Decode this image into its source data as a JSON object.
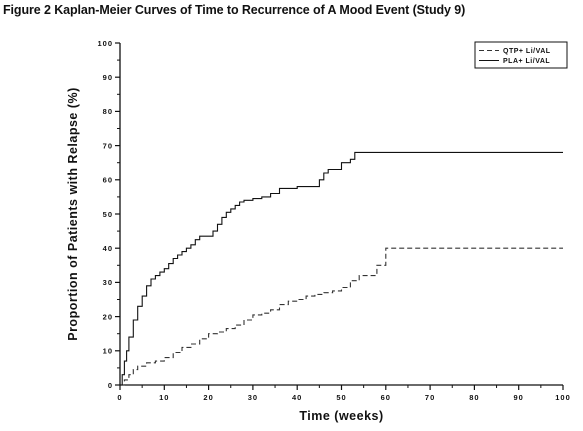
{
  "figure": {
    "title": "Figure 2 Kaplan-Meier Curves of Time to Recurrence of A Mood Event (Study 9)"
  },
  "chart_data": {
    "type": "line",
    "title": "Figure 2 Kaplan-Meier Curves of Time to Recurrence of A Mood Event (Study 9)",
    "xlabel": "Time (weeks)",
    "ylabel": "Proportion of Patients with Relapse (%)",
    "xlim": [
      0,
      100
    ],
    "ylim": [
      0,
      100
    ],
    "xticks": [
      0,
      10,
      20,
      30,
      40,
      50,
      60,
      70,
      80,
      90,
      100
    ],
    "yticks": [
      0,
      10,
      20,
      30,
      40,
      50,
      60,
      70,
      80,
      90,
      100
    ],
    "grid": false,
    "legend_position": "top-right",
    "series": [
      {
        "name": "QTP+ Li/VAL",
        "line_style": "dashed",
        "color": "#333333",
        "points": [
          [
            0,
            0
          ],
          [
            1,
            1.5
          ],
          [
            2,
            3
          ],
          [
            3,
            4.5
          ],
          [
            4,
            5.5
          ],
          [
            6,
            6.5
          ],
          [
            8,
            7
          ],
          [
            10,
            8
          ],
          [
            12,
            9.5
          ],
          [
            14,
            11
          ],
          [
            16,
            12
          ],
          [
            18,
            13.5
          ],
          [
            20,
            15
          ],
          [
            22,
            15.5
          ],
          [
            24,
            16.5
          ],
          [
            26,
            17.5
          ],
          [
            28,
            19
          ],
          [
            30,
            20.5
          ],
          [
            32,
            21
          ],
          [
            34,
            22
          ],
          [
            36,
            23.5
          ],
          [
            38,
            24.5
          ],
          [
            40,
            25
          ],
          [
            42,
            26
          ],
          [
            44,
            26.5
          ],
          [
            46,
            27
          ],
          [
            48,
            27.5
          ],
          [
            50,
            28.5
          ],
          [
            52,
            30.5
          ],
          [
            54,
            32
          ],
          [
            58,
            32
          ],
          [
            58,
            35
          ],
          [
            60,
            35
          ],
          [
            60,
            40
          ],
          [
            100,
            40
          ]
        ]
      },
      {
        "name": "PLA+ Li/VAL",
        "line_style": "solid",
        "color": "#111111",
        "points": [
          [
            0,
            0
          ],
          [
            0.5,
            3
          ],
          [
            1,
            7
          ],
          [
            1.5,
            10
          ],
          [
            2,
            14
          ],
          [
            3,
            19
          ],
          [
            4,
            23
          ],
          [
            5,
            26
          ],
          [
            6,
            29
          ],
          [
            7,
            31
          ],
          [
            8,
            32
          ],
          [
            9,
            33
          ],
          [
            10,
            34
          ],
          [
            11,
            35.5
          ],
          [
            12,
            37
          ],
          [
            13,
            38
          ],
          [
            14,
            39
          ],
          [
            15,
            40
          ],
          [
            16,
            41
          ],
          [
            17,
            42.5
          ],
          [
            18,
            43.5
          ],
          [
            20,
            43.5
          ],
          [
            21,
            45
          ],
          [
            22,
            47
          ],
          [
            23,
            49
          ],
          [
            24,
            50.5
          ],
          [
            25,
            51.5
          ],
          [
            26,
            52.5
          ],
          [
            27,
            53.5
          ],
          [
            28,
            54
          ],
          [
            30,
            54.5
          ],
          [
            32,
            55
          ],
          [
            34,
            56
          ],
          [
            36,
            57.5
          ],
          [
            40,
            58
          ],
          [
            44,
            58
          ],
          [
            45,
            60
          ],
          [
            46,
            62
          ],
          [
            47,
            63
          ],
          [
            49,
            63
          ],
          [
            50,
            65
          ],
          [
            52,
            66
          ],
          [
            53,
            68
          ],
          [
            100,
            68
          ]
        ]
      }
    ]
  }
}
